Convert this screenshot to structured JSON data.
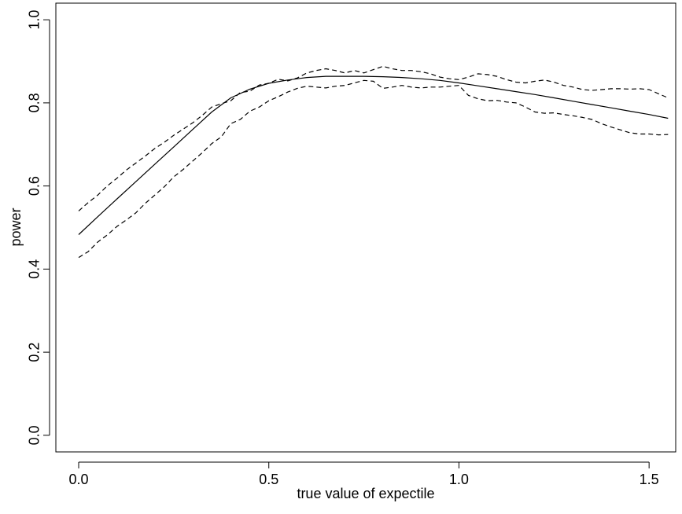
{
  "chart_data": {
    "type": "line",
    "title": "",
    "xlabel": "true value of expectile",
    "ylabel": "power",
    "xlim": [
      -0.06,
      1.57
    ],
    "ylim": [
      -0.04,
      1.04
    ],
    "grid": false,
    "legend": "none",
    "x_ticks": [
      {
        "value": 0.0,
        "label": "0.0"
      },
      {
        "value": 0.5,
        "label": "0.5"
      },
      {
        "value": 1.0,
        "label": "1.0"
      },
      {
        "value": 1.5,
        "label": "1.5"
      }
    ],
    "y_ticks": [
      {
        "value": 0.0,
        "label": "0.0"
      },
      {
        "value": 0.2,
        "label": "0.2"
      },
      {
        "value": 0.4,
        "label": "0.4"
      },
      {
        "value": 0.6,
        "label": "0.6"
      },
      {
        "value": 0.8,
        "label": "0.8"
      },
      {
        "value": 1.0,
        "label": "1.0"
      }
    ],
    "series": [
      {
        "key": "estimate",
        "style": "solid",
        "color": "#000000",
        "x": [
          0.0,
          0.05,
          0.1,
          0.15,
          0.2,
          0.25,
          0.3,
          0.35,
          0.4,
          0.45,
          0.5,
          0.55,
          0.6,
          0.65,
          0.7,
          0.75,
          0.8,
          0.85,
          0.9,
          0.95,
          1.0,
          1.05,
          1.1,
          1.15,
          1.2,
          1.25,
          1.3,
          1.35,
          1.4,
          1.45,
          1.5,
          1.55
        ],
        "y": [
          0.483,
          0.526,
          0.568,
          0.61,
          0.652,
          0.694,
          0.736,
          0.778,
          0.812,
          0.833,
          0.847,
          0.855,
          0.861,
          0.864,
          0.864,
          0.864,
          0.863,
          0.861,
          0.858,
          0.854,
          0.848,
          0.841,
          0.834,
          0.827,
          0.82,
          0.812,
          0.804,
          0.796,
          0.788,
          0.78,
          0.772,
          0.763
        ]
      },
      {
        "key": "upper-band",
        "style": "dashed",
        "color": "#000000",
        "x": [
          0.0,
          0.025,
          0.05,
          0.075,
          0.1,
          0.125,
          0.15,
          0.175,
          0.2,
          0.225,
          0.25,
          0.275,
          0.3,
          0.325,
          0.35,
          0.375,
          0.4,
          0.425,
          0.45,
          0.475,
          0.5,
          0.525,
          0.55,
          0.575,
          0.6,
          0.625,
          0.65,
          0.675,
          0.7,
          0.725,
          0.75,
          0.775,
          0.8,
          0.825,
          0.85,
          0.875,
          0.9,
          0.925,
          0.95,
          0.975,
          1.0,
          1.025,
          1.05,
          1.075,
          1.1,
          1.125,
          1.15,
          1.175,
          1.2,
          1.225,
          1.25,
          1.275,
          1.3,
          1.325,
          1.35,
          1.375,
          1.4,
          1.425,
          1.45,
          1.475,
          1.5,
          1.525,
          1.55
        ],
        "y": [
          0.54,
          0.56,
          0.578,
          0.6,
          0.618,
          0.638,
          0.655,
          0.672,
          0.69,
          0.705,
          0.722,
          0.737,
          0.752,
          0.77,
          0.79,
          0.798,
          0.805,
          0.825,
          0.828,
          0.843,
          0.847,
          0.857,
          0.853,
          0.86,
          0.872,
          0.878,
          0.882,
          0.878,
          0.872,
          0.878,
          0.872,
          0.88,
          0.888,
          0.882,
          0.878,
          0.878,
          0.875,
          0.87,
          0.862,
          0.858,
          0.856,
          0.862,
          0.87,
          0.868,
          0.864,
          0.856,
          0.85,
          0.848,
          0.852,
          0.855,
          0.85,
          0.842,
          0.838,
          0.832,
          0.83,
          0.832,
          0.834,
          0.834,
          0.833,
          0.834,
          0.832,
          0.822,
          0.812
        ]
      },
      {
        "key": "lower-band",
        "style": "dashed",
        "color": "#000000",
        "x": [
          0.0,
          0.025,
          0.05,
          0.075,
          0.1,
          0.125,
          0.15,
          0.175,
          0.2,
          0.225,
          0.25,
          0.275,
          0.3,
          0.325,
          0.35,
          0.375,
          0.4,
          0.425,
          0.45,
          0.475,
          0.5,
          0.525,
          0.55,
          0.575,
          0.6,
          0.625,
          0.65,
          0.675,
          0.7,
          0.725,
          0.75,
          0.775,
          0.8,
          0.825,
          0.85,
          0.875,
          0.9,
          0.925,
          0.95,
          0.975,
          1.0,
          1.025,
          1.05,
          1.075,
          1.1,
          1.125,
          1.15,
          1.175,
          1.2,
          1.225,
          1.25,
          1.275,
          1.3,
          1.325,
          1.35,
          1.375,
          1.4,
          1.425,
          1.45,
          1.475,
          1.5,
          1.525,
          1.55
        ],
        "y": [
          0.428,
          0.442,
          0.465,
          0.482,
          0.502,
          0.518,
          0.535,
          0.558,
          0.578,
          0.598,
          0.622,
          0.64,
          0.66,
          0.68,
          0.702,
          0.718,
          0.75,
          0.76,
          0.78,
          0.79,
          0.805,
          0.815,
          0.826,
          0.835,
          0.84,
          0.838,
          0.836,
          0.84,
          0.842,
          0.848,
          0.854,
          0.852,
          0.835,
          0.838,
          0.842,
          0.838,
          0.836,
          0.838,
          0.838,
          0.84,
          0.842,
          0.818,
          0.81,
          0.805,
          0.806,
          0.802,
          0.8,
          0.79,
          0.778,
          0.775,
          0.776,
          0.772,
          0.769,
          0.765,
          0.76,
          0.75,
          0.742,
          0.735,
          0.728,
          0.725,
          0.725,
          0.723,
          0.724
        ]
      }
    ]
  }
}
